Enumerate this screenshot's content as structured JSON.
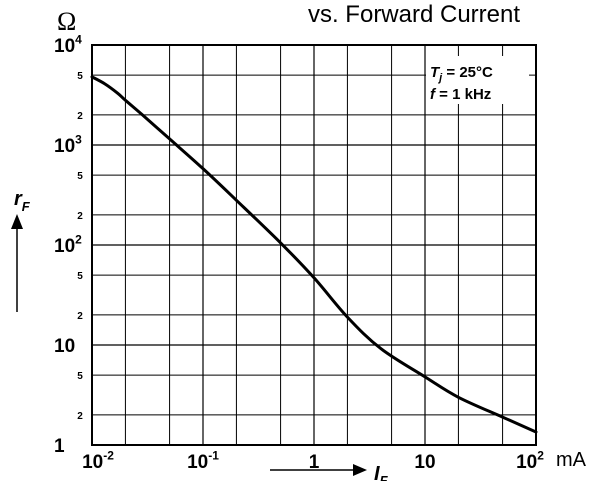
{
  "chart_data": {
    "type": "line",
    "title": "vs. Forward Current",
    "y_unit_symbol": "Ω",
    "y_axis_label": {
      "base": "r",
      "sub": "F"
    },
    "x_axis_label": {
      "base": "I",
      "sub": "F"
    },
    "x_unit": "mA",
    "x_scale": "log",
    "y_scale": "log",
    "xlim": [
      0.01,
      100
    ],
    "ylim": [
      1,
      10000
    ],
    "grid": true,
    "x_ticks": [
      {
        "value": 0.01,
        "base": "10",
        "exp": "-2"
      },
      {
        "value": 0.1,
        "base": "10",
        "exp": "-1"
      },
      {
        "value": 1,
        "base": "1",
        "exp": ""
      },
      {
        "value": 10,
        "base": "10",
        "exp": ""
      },
      {
        "value": 100,
        "base": "10",
        "exp": "2"
      }
    ],
    "y_major_ticks": [
      {
        "value": 1,
        "base": "1",
        "exp": ""
      },
      {
        "value": 10,
        "base": "10",
        "exp": ""
      },
      {
        "value": 100,
        "base": "10",
        "exp": "2"
      },
      {
        "value": 1000,
        "base": "10",
        "exp": "3"
      },
      {
        "value": 10000,
        "base": "10",
        "exp": "4"
      }
    ],
    "y_minor_ticks": [
      {
        "value": 2,
        "label": "2"
      },
      {
        "value": 5,
        "label": "5"
      },
      {
        "value": 20,
        "label": "2"
      },
      {
        "value": 50,
        "label": "5"
      },
      {
        "value": 200,
        "label": "2"
      },
      {
        "value": 500,
        "label": "5"
      },
      {
        "value": 2000,
        "label": "2"
      },
      {
        "value": 5000,
        "label": "5"
      }
    ],
    "annotation": {
      "line1": {
        "base": "T",
        "sub": "j",
        "rest": " = 25°C"
      },
      "line2": {
        "base": "f",
        "rest": " = 1 kHz"
      }
    },
    "series": [
      {
        "x": [
          0.01,
          0.013,
          0.017,
          0.02,
          0.03,
          0.05,
          0.1,
          0.2,
          0.5,
          1,
          2,
          4,
          10,
          20,
          50,
          100
        ],
        "y": [
          4800,
          4100,
          3300,
          2800,
          1900,
          1150,
          580,
          280,
          105,
          47,
          19,
          9.2,
          4.8,
          3.0,
          1.9,
          1.35
        ]
      }
    ]
  }
}
